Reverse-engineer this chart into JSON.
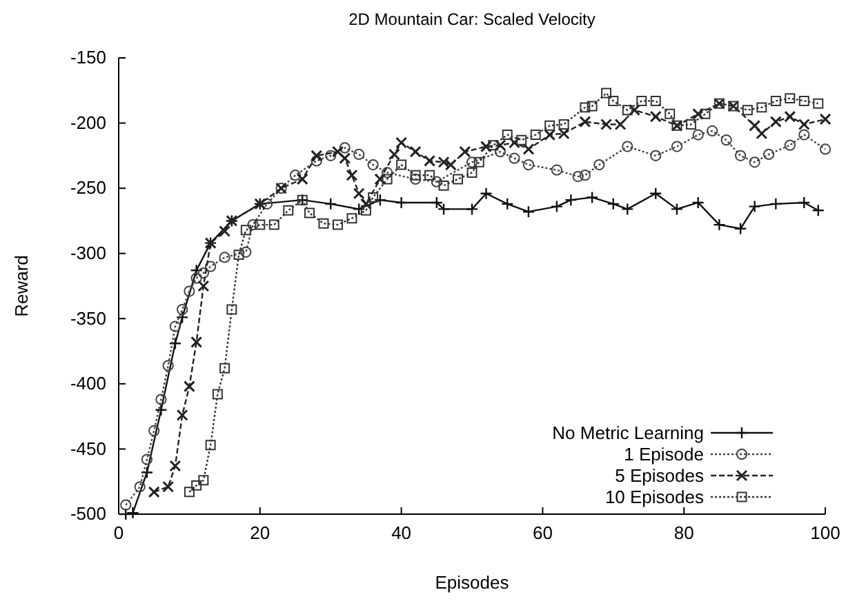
{
  "chart_data": {
    "type": "line",
    "title": "2D Mountain Car: Scaled Velocity",
    "xlabel": "Episodes",
    "ylabel": "Reward",
    "xlim": [
      0,
      100
    ],
    "ylim": [
      -500,
      -150
    ],
    "xticks": [
      0,
      20,
      40,
      60,
      80,
      100
    ],
    "yticks": [
      -150,
      -200,
      -250,
      -300,
      -350,
      -400,
      -450,
      -500
    ],
    "legend": "bottom right",
    "grid": false,
    "series": [
      {
        "name": "No Metric Learning",
        "color": "#111111",
        "marker": "cross",
        "line_style": "solid",
        "x": [
          1,
          2,
          4,
          6,
          8,
          9,
          11,
          13,
          16,
          20,
          26,
          30,
          34,
          37,
          40,
          45,
          46,
          50,
          52,
          55,
          58,
          62,
          64,
          67,
          70,
          72,
          76,
          79,
          82,
          85,
          88,
          90,
          93,
          97,
          99
        ],
        "values": [
          -500,
          -499,
          -468,
          -420,
          -369,
          -349,
          -313,
          -292,
          -275,
          -262,
          -259,
          -262,
          -266,
          -259,
          -261,
          -261,
          -266,
          -266,
          -254,
          -262,
          -268,
          -264,
          -259,
          -257,
          -262,
          -266,
          -254,
          -266,
          -261,
          -278,
          -281,
          -264,
          -262,
          -261,
          -267
        ]
      },
      {
        "name": "1 Episode",
        "color": "#444444",
        "marker": "circle",
        "line_style": "dotted",
        "x": [
          1,
          3,
          4,
          5,
          6,
          7,
          8,
          9,
          10,
          11,
          12,
          13,
          15,
          18,
          19,
          21,
          23,
          25,
          28,
          30,
          32,
          34,
          36,
          38,
          42,
          45,
          50,
          54,
          56,
          58,
          62,
          65,
          66,
          68,
          72,
          76,
          79,
          82,
          84,
          86,
          88,
          90,
          92,
          95,
          97,
          100
        ],
        "values": [
          -493,
          -479,
          -458,
          -436,
          -412,
          -386,
          -356,
          -343,
          -329,
          -319,
          -315,
          -310,
          -303,
          -299,
          -278,
          -262,
          -250,
          -240,
          -229,
          -225,
          -219,
          -224,
          -232,
          -238,
          -243,
          -245,
          -230,
          -222,
          -227,
          -232,
          -236,
          -241,
          -240,
          -232,
          -218,
          -225,
          -218,
          -209,
          -206,
          -213,
          -225,
          -230,
          -224,
          -217,
          -209,
          -220
        ]
      },
      {
        "name": "5 Episodes",
        "color": "#222222",
        "marker": "cross",
        "line_style": "dashed",
        "x": [
          5,
          7,
          8,
          9,
          10,
          11,
          12,
          13,
          15,
          16,
          20,
          23,
          26,
          28,
          31,
          32,
          33,
          34,
          35,
          37,
          39,
          40,
          42,
          44,
          46,
          47,
          49,
          52,
          54,
          56,
          58,
          61,
          63,
          66,
          69,
          71,
          73,
          76,
          79,
          82,
          85,
          87,
          90,
          91,
          93,
          95,
          97,
          100
        ],
        "values": [
          -483,
          -479,
          -463,
          -424,
          -402,
          -368,
          -325,
          -292,
          -283,
          -275,
          -262,
          -250,
          -243,
          -225,
          -222,
          -227,
          -240,
          -254,
          -262,
          -243,
          -224,
          -215,
          -222,
          -229,
          -230,
          -232,
          -222,
          -218,
          -217,
          -215,
          -220,
          -209,
          -208,
          -199,
          -201,
          -201,
          -190,
          -195,
          -202,
          -193,
          -185,
          -187,
          -202,
          -208,
          -199,
          -195,
          -201,
          -197
        ]
      },
      {
        "name": "10 Episodes",
        "color": "#333333",
        "marker": "square",
        "line_style": "dotted",
        "x": [
          10,
          11,
          12,
          13,
          14,
          15,
          16,
          17,
          18,
          20,
          22,
          24,
          26,
          27,
          29,
          31,
          33,
          35,
          36,
          38,
          40,
          42,
          44,
          46,
          48,
          50,
          51,
          53,
          55,
          57,
          59,
          61,
          63,
          66,
          67,
          69,
          70,
          72,
          74,
          76,
          78,
          79,
          81,
          83,
          85,
          87,
          89,
          91,
          93,
          95,
          97,
          99
        ],
        "values": [
          -483,
          -478,
          -474,
          -447,
          -408,
          -388,
          -343,
          -301,
          -282,
          -278,
          -278,
          -267,
          -259,
          -269,
          -277,
          -278,
          -273,
          -267,
          -257,
          -243,
          -232,
          -240,
          -240,
          -248,
          -243,
          -238,
          -230,
          -217,
          -209,
          -213,
          -209,
          -202,
          -201,
          -188,
          -187,
          -177,
          -183,
          -190,
          -183,
          -183,
          -193,
          -202,
          -201,
          -193,
          -185,
          -187,
          -190,
          -188,
          -183,
          -181,
          -183,
          -185
        ]
      }
    ]
  }
}
